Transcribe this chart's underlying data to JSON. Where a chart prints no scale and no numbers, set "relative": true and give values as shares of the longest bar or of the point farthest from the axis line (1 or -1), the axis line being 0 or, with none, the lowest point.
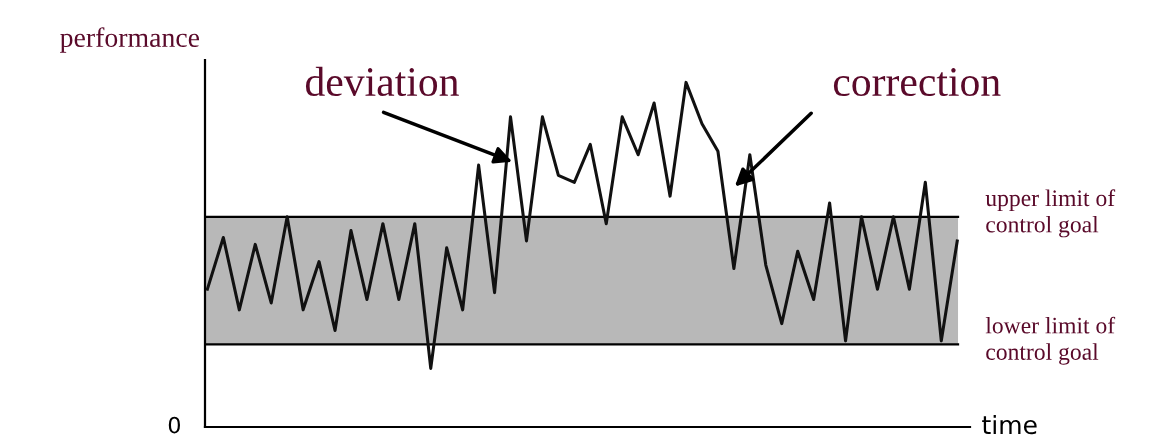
{
  "chart_data": {
    "type": "line",
    "relative": true,
    "ylabel": "performance",
    "xlabel": "time",
    "categories": [
      null,
      null,
      null,
      null,
      null,
      null,
      null,
      null,
      null,
      null,
      null,
      null,
      null,
      null,
      null,
      null,
      null,
      null,
      null,
      null,
      null,
      null,
      null,
      null,
      null,
      null,
      null,
      null,
      null,
      null,
      null,
      null,
      null,
      null,
      null,
      null,
      null,
      null,
      null,
      null,
      null,
      null,
      null,
      null,
      null,
      null,
      null,
      null
    ],
    "series": [
      {
        "color": "#111111",
        "values": [
          0.4,
          0.55,
          0.34,
          0.53,
          0.36,
          0.61,
          0.34,
          0.48,
          0.28,
          0.57,
          0.37,
          0.59,
          0.37,
          0.59,
          0.17,
          0.52,
          0.34,
          0.76,
          0.39,
          0.9,
          0.54,
          0.9,
          0.73,
          0.71,
          0.82,
          0.59,
          0.9,
          0.79,
          0.94,
          0.67,
          1.0,
          0.88,
          0.8,
          0.46,
          0.79,
          0.47,
          0.3,
          0.51,
          0.37,
          0.65,
          0.25,
          0.61,
          0.4,
          0.61,
          0.4,
          0.71,
          0.25,
          0.54
        ]
      }
    ],
    "bands": [
      {
        "axis": "y",
        "from": 0.24,
        "to": 0.61,
        "color": "#b8b8b8"
      }
    ],
    "ref_lines": [
      {
        "axis": "y",
        "value": 0.61,
        "label": "upper limit of\ncontrol goal"
      },
      {
        "axis": "y",
        "value": 0.24,
        "label": "lower limit of\ncontrol goal"
      }
    ],
    "annotations": [
      "deviation",
      "correction",
      "0"
    ],
    "marker": "none",
    "line_style": "solid"
  }
}
